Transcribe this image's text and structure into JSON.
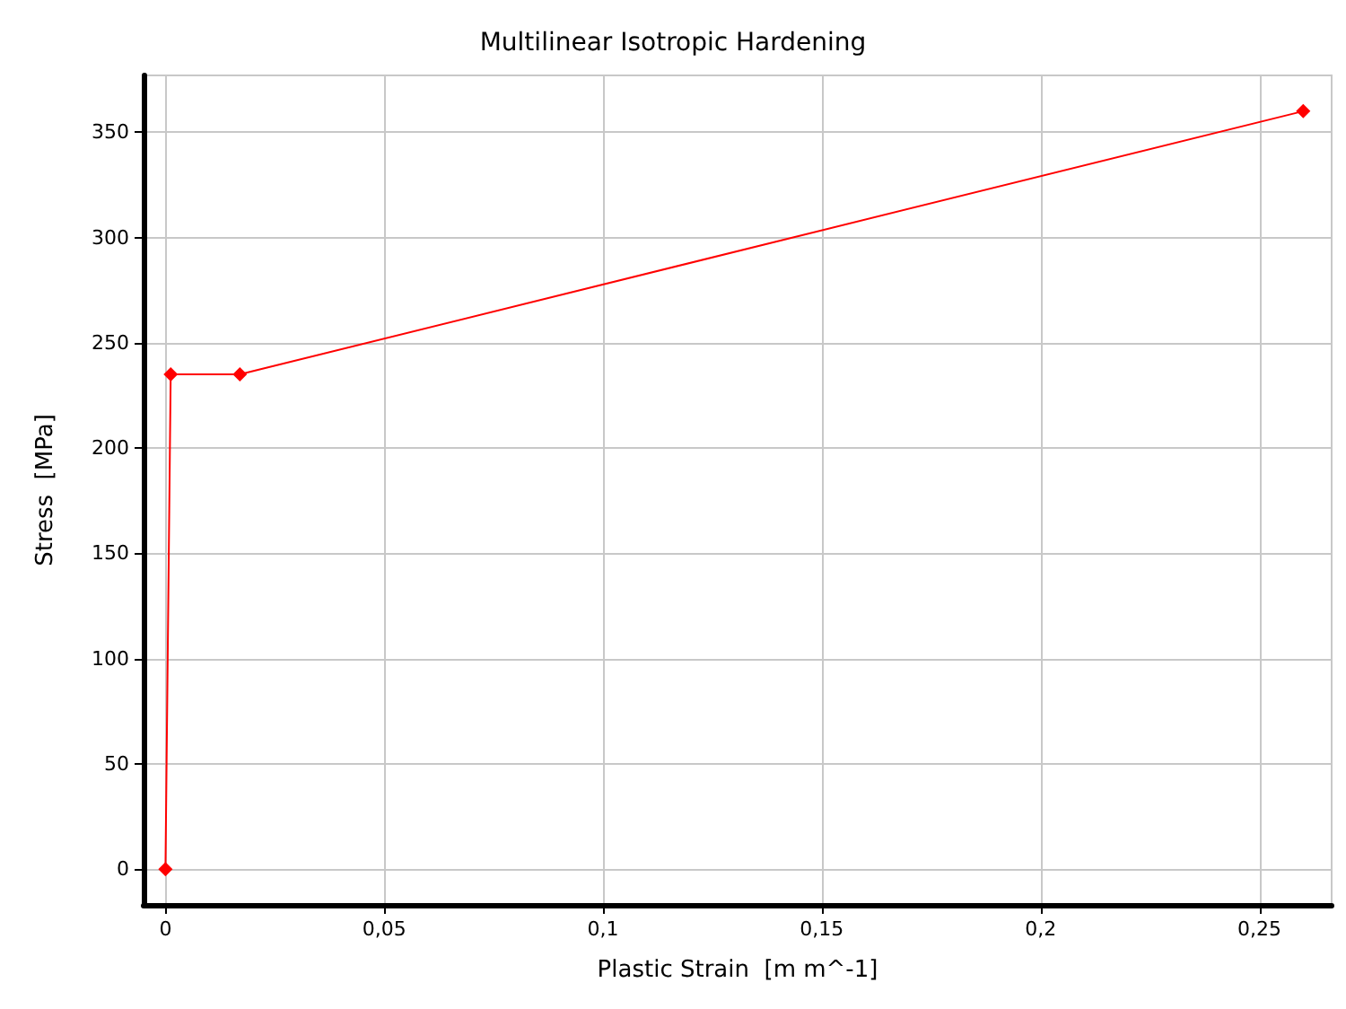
{
  "chart_data": {
    "type": "line",
    "title": "Multilinear Isotropic Hardening",
    "xlabel": "Plastic Strain  [m m^-1]",
    "ylabel": "Stress  [MPa]",
    "x": [
      0,
      0.0012,
      0.017,
      0.26
    ],
    "series": [
      {
        "color": "#ff0000",
        "values": [
          0,
          235,
          235,
          360
        ]
      }
    ],
    "xlim": [
      -0.005,
      0.2665
    ],
    "ylim": [
      -17,
      377
    ],
    "xticks": [
      0,
      {
        "value": 0.05,
        "label": "0,05"
      },
      {
        "value": 0.1,
        "label": "0,1"
      },
      {
        "value": 0.15,
        "label": "0,15"
      },
      {
        "value": 0.2,
        "label": "0,2"
      },
      {
        "value": 0.25,
        "label": "0,25"
      }
    ],
    "yticks": [
      0,
      50,
      100,
      150,
      200,
      250,
      300,
      350
    ],
    "grid": true,
    "marker": "diamond",
    "line_style": "solid"
  }
}
